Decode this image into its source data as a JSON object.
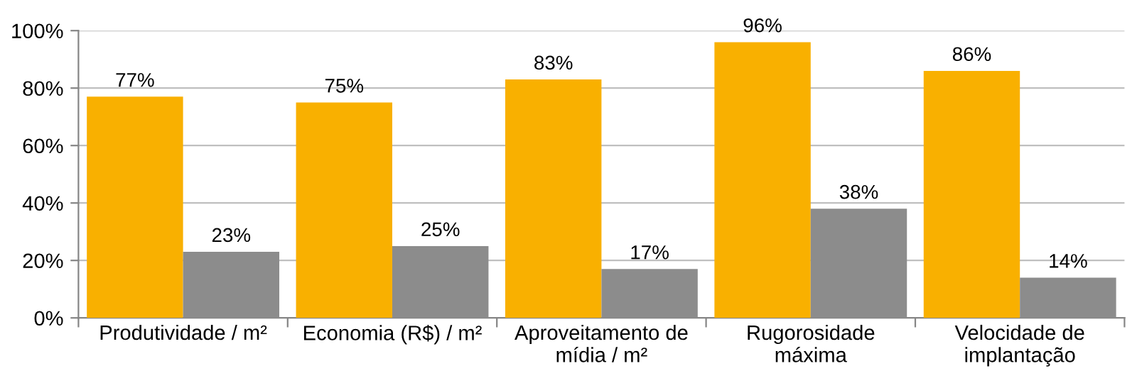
{
  "chart_data": {
    "type": "bar",
    "categories": [
      "Produtividade / m²",
      "Economia (R$) / m²",
      "Aproveitamento de\nmídia / m²",
      "Rugorosidade\nmáxima",
      "Velocidade de\nimplantação"
    ],
    "series": [
      {
        "color": "#f9b000",
        "values": [
          77,
          75,
          83,
          96,
          86
        ],
        "value_labels": [
          "77%",
          "75%",
          "83%",
          "96%",
          "86%"
        ]
      },
      {
        "color": "#8c8c8c",
        "values": [
          23,
          25,
          17,
          38,
          14
        ],
        "value_labels": [
          "23%",
          "25%",
          "17%",
          "38%",
          "14%"
        ]
      }
    ],
    "ylim": [
      0,
      100
    ],
    "yticks": [
      {
        "value": 0,
        "label": "0%"
      },
      {
        "value": 20,
        "label": "20%"
      },
      {
        "value": 40,
        "label": "40%"
      },
      {
        "value": 60,
        "label": "60%"
      },
      {
        "value": 80,
        "label": "80%"
      },
      {
        "value": 100,
        "label": "100%"
      }
    ],
    "grid": "y",
    "legend": false
  }
}
